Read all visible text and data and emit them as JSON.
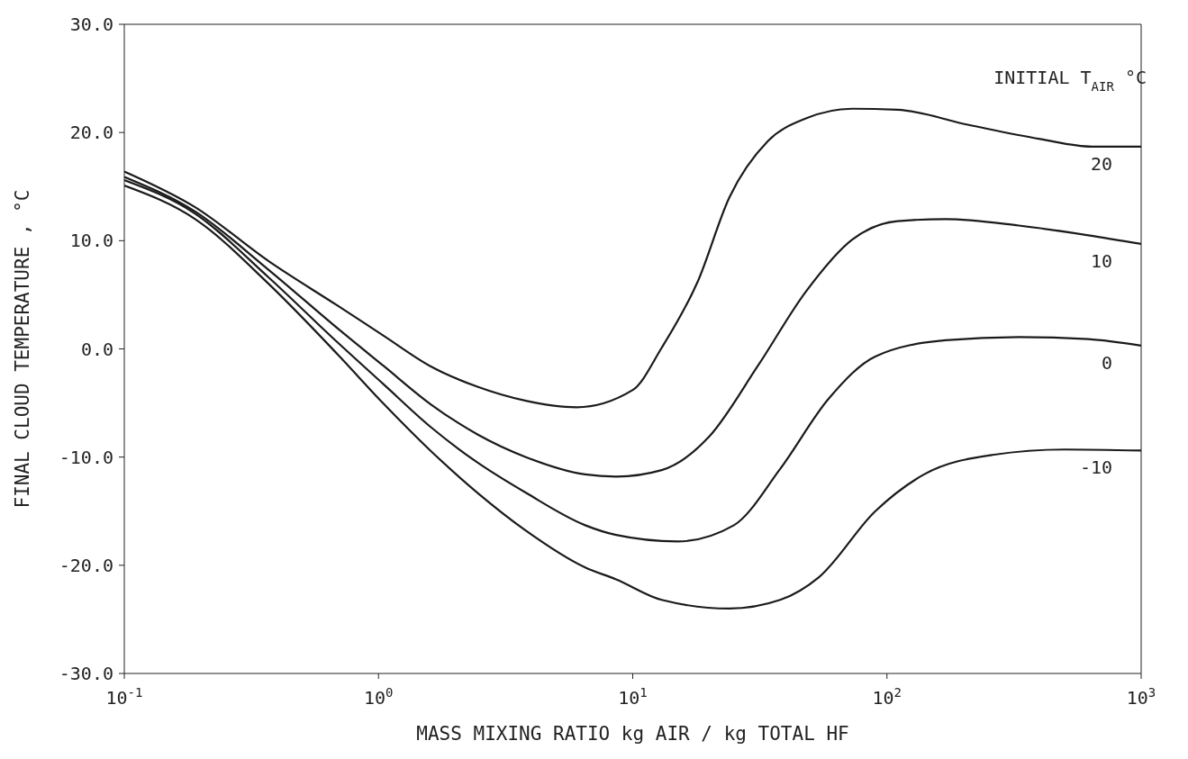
{
  "chart_data": {
    "type": "line",
    "xlabel": "MASS  MIXING RATIO  kg AIR / kg TOTAL  HF",
    "ylabel": "FINAL  CLOUD  TEMPERATURE , °C",
    "log": "x",
    "legend_title": "INITIAL  T$_{AIR}$  °C",
    "xlim": [
      0.1,
      1000
    ],
    "xticks": [
      {
        "value": 0.1,
        "label": "10$^{-1}$"
      },
      {
        "value": 1,
        "label": "10$^{0}$"
      },
      {
        "value": 10,
        "label": "10$^{1}$"
      },
      {
        "value": 100,
        "label": "10$^{2}$"
      },
      {
        "value": 1000,
        "label": "10$^{3}$"
      }
    ],
    "ylim": [
      -30,
      30
    ],
    "yticks": [
      {
        "value": -30,
        "label": "-30.0"
      },
      {
        "value": -20,
        "label": "-20.0"
      },
      {
        "value": -10,
        "label": "-10.0"
      },
      {
        "value": 0,
        "label": "0.0"
      },
      {
        "value": 10,
        "label": "10.0"
      },
      {
        "value": 20,
        "label": "20.0"
      },
      {
        "value": 30,
        "label": "30.0"
      }
    ],
    "series": [
      {
        "name": "20",
        "color": "#1a1a1a",
        "x": [
          0.1,
          0.19,
          0.37,
          0.69,
          1.05,
          1.6,
          2.45,
          3.8,
          6,
          10,
          13,
          18,
          24,
          34,
          48,
          73,
          110,
          210,
          400,
          640,
          1000
        ],
        "values": [
          16.4,
          13.1,
          8.1,
          4.0,
          1.2,
          -1.6,
          -3.5,
          -4.8,
          -5.4,
          -3.8,
          0.1,
          6.2,
          14,
          19.2,
          21.3,
          22.2,
          22.1,
          20.7,
          19.4,
          18.7,
          18.7
        ]
      },
      {
        "name": "10",
        "color": "#1a1a1a",
        "x": [
          0.1,
          0.19,
          0.37,
          0.69,
          1.05,
          1.6,
          2.45,
          3.8,
          6.5,
          8.6,
          13,
          20,
          31,
          48,
          73,
          110,
          170,
          330,
          620,
          1000
        ],
        "values": [
          15.9,
          12.7,
          7.3,
          1.9,
          -1.6,
          -5.1,
          -7.9,
          -10,
          -11.6,
          -11.8,
          -11.2,
          -8.1,
          -1.6,
          5.3,
          10.1,
          11.8,
          12,
          11.4,
          10.5,
          9.7
        ]
      },
      {
        "name": "0",
        "color": "#1a1a1a",
        "x": [
          0.1,
          0.19,
          0.37,
          0.69,
          1.05,
          1.6,
          2.45,
          3.8,
          6.5,
          8.6,
          15,
          25,
          38,
          59,
          90,
          170,
          330,
          620,
          1000
        ],
        "values": [
          15.6,
          12.5,
          6.6,
          0.6,
          -3.3,
          -7.2,
          -10.5,
          -13.3,
          -16.3,
          -17.2,
          -17.8,
          -16.3,
          -11.1,
          -4.6,
          -0.7,
          0.8,
          1.1,
          0.9,
          0.3
        ]
      },
      {
        "name": "-10",
        "color": "#1a1a1a",
        "x": [
          0.1,
          0.19,
          0.37,
          0.69,
          1.05,
          1.6,
          2.45,
          3.8,
          6.5,
          8.6,
          13,
          24,
          38,
          54,
          90,
          140,
          260,
          500,
          1000
        ],
        "values": [
          15.1,
          12,
          6,
          -0.5,
          -5.1,
          -9.4,
          -13.3,
          -16.8,
          -20.2,
          -21.3,
          -23.2,
          -24,
          -23.2,
          -21.1,
          -15,
          -11.6,
          -9.8,
          -9.3,
          -9.4
        ]
      }
    ]
  }
}
